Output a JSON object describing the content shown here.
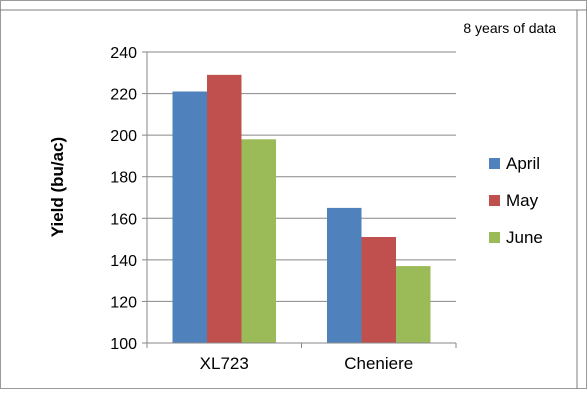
{
  "chart_data": {
    "type": "bar",
    "annotation": "8 years of data",
    "ylabel": "Yield (bu/ac)",
    "categories": [
      "XL723",
      "Cheniere"
    ],
    "series": [
      {
        "name": "April",
        "values": [
          221,
          165
        ],
        "color": "#4F81BD"
      },
      {
        "name": "May",
        "values": [
          229,
          151
        ],
        "color": "#C0504D"
      },
      {
        "name": "June",
        "values": [
          198,
          137
        ],
        "color": "#9BBB59"
      }
    ],
    "ylim": [
      100,
      240
    ],
    "yticks": [
      "100",
      "120",
      "140",
      "160",
      "180",
      "200",
      "220",
      "240"
    ],
    "grid": true,
    "legend_position": "right"
  }
}
